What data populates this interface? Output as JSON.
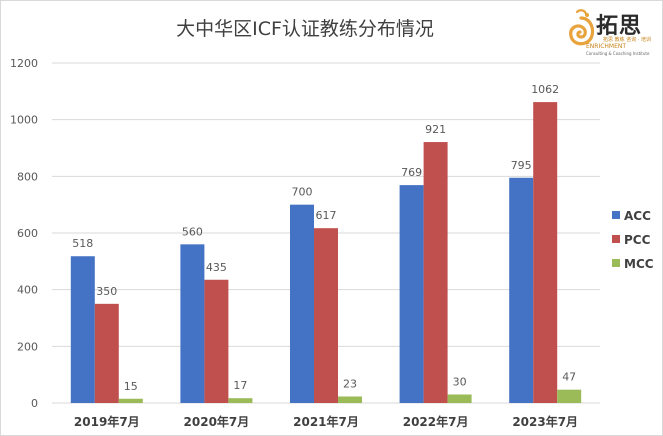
{
  "colors": {
    "ACC": "#4472c4",
    "PCC": "#c0504d",
    "MCC": "#9bbb59",
    "grid": "#d9d9d9",
    "text": "#404040",
    "logo_accent": "#e8a33c"
  },
  "logo": {
    "brand": "拓思",
    "sub": "拓思 教练 咨询 · 培训",
    "en": "ENRICHMENT",
    "en2": "Consulting & Coaching Institute",
    "icon": "spiral-logo-icon"
  },
  "chart_data": {
    "type": "bar",
    "title": "大中华区ICF认证教练分布情况",
    "categories": [
      "2019年7月",
      "2020年7月",
      "2021年7月",
      "2022年7月",
      "2023年7月"
    ],
    "series": [
      {
        "name": "ACC",
        "values": [
          518,
          560,
          700,
          769,
          795
        ]
      },
      {
        "name": "PCC",
        "values": [
          350,
          435,
          617,
          921,
          1062
        ]
      },
      {
        "name": "MCC",
        "values": [
          15,
          17,
          23,
          30,
          47
        ]
      }
    ],
    "yticks": [
      "0",
      "200",
      "400",
      "600",
      "800",
      "1000",
      "1200"
    ],
    "ylim": [
      0,
      1200
    ],
    "xlabel": "",
    "ylabel": "",
    "grid": true,
    "legend": "right",
    "data_labels": true
  }
}
